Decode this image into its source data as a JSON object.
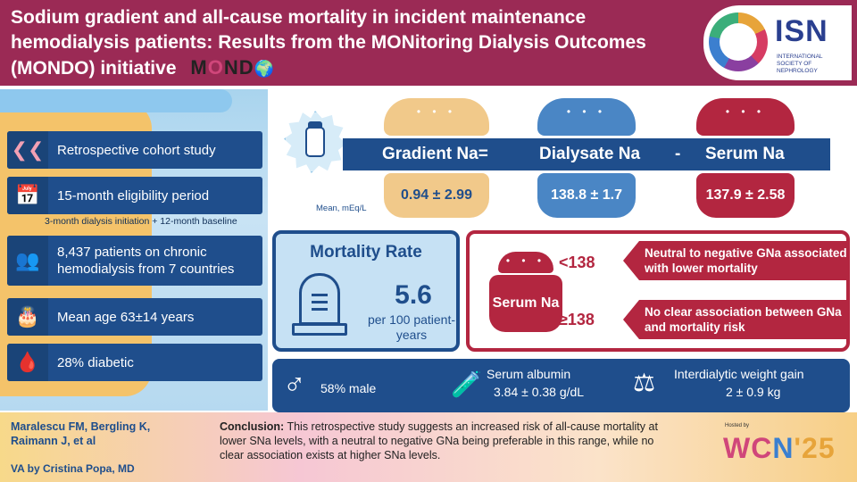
{
  "header": {
    "title": "Sodium gradient and all-cause mortality in incident maintenance hemodialysis patients: Results from the MONitoring Dialysis Outcomes (MONDO) initiative",
    "mondo_logo": {
      "m": "M",
      "o": "O",
      "nd": "ND",
      "globe": "🌍"
    },
    "isn_logo": {
      "name": "ISN",
      "sub": "INTERNATIONAL SOCIETY OF NEPHROLOGY"
    }
  },
  "study": {
    "items": [
      {
        "icon": "double-chevron-left-icon",
        "glyph": "❮❮",
        "text": "Retrospective cohort study"
      },
      {
        "icon": "calendar-icon",
        "glyph": "📅",
        "text": "15-month eligibility period"
      },
      {
        "icon": "people-icon",
        "glyph": "👥",
        "text": "8,437 patients on chronic hemodialysis from 7 countries"
      },
      {
        "icon": "birthday-cake-icon",
        "glyph": "🎂",
        "text": "Mean age 63±14 years"
      },
      {
        "icon": "blood-drop-icon",
        "glyph": "🩸",
        "text": "28% diabetic"
      }
    ],
    "eligibility_sub": "3-month dialysis initiation + 12-month baseline"
  },
  "gradient": {
    "label_gradient": "Gradient Na=",
    "label_dialysate": "Dialysate Na",
    "minus": "-",
    "label_serum": "Serum Na",
    "value_gradient": "0.94 ± 2.99",
    "value_dialysate": "138.8 ± 1.7",
    "value_serum": "137.9 ± 2.58",
    "mean_label": "Mean, mEq/L",
    "dots": "• • •",
    "colors": {
      "gradient": "#f1c98a",
      "dialysate": "#4a86c5",
      "serum": "#b32640"
    }
  },
  "mortality": {
    "title": "Mortality Rate",
    "value": "5.6",
    "unit": "per 100 patient-years",
    "icon": "tombstone-icon"
  },
  "serum_panel": {
    "label": "Serum Na",
    "low_threshold": "<138",
    "low_text": "Neutral to negative GNa associated with lower mortality",
    "high_threshold": "≥138",
    "high_text": "No clear association between GNa and mortality risk"
  },
  "stats": {
    "male": {
      "icon": "male-symbol-icon",
      "glyph": "♂",
      "text": "58% male"
    },
    "albumin": {
      "icon": "test-tube-icon",
      "glyph": "🧪",
      "label": "Serum albumin",
      "value": "3.84 ± 0.38 g/dL"
    },
    "weight": {
      "icon": "scale-icon",
      "glyph": "⚖",
      "label": "Interdialytic weight gain",
      "value": "2 ± 0.9 kg"
    }
  },
  "footer": {
    "authors": "Maralescu FM, Bergling K, Raimann J, et al",
    "va_by": "VA by Cristina Popa, MD",
    "conclusion_label": "Conclusion:",
    "conclusion_text": " This retrospective study suggests an increased risk of all-cause mortality at lower SNa levels, with a neutral to negative GNa being preferable in this range, while no clear association exists at higher SNa levels.",
    "wcn_hosted": "Hosted by",
    "wcn": {
      "w": "WC",
      "n": "N",
      "yr": "'25"
    }
  }
}
